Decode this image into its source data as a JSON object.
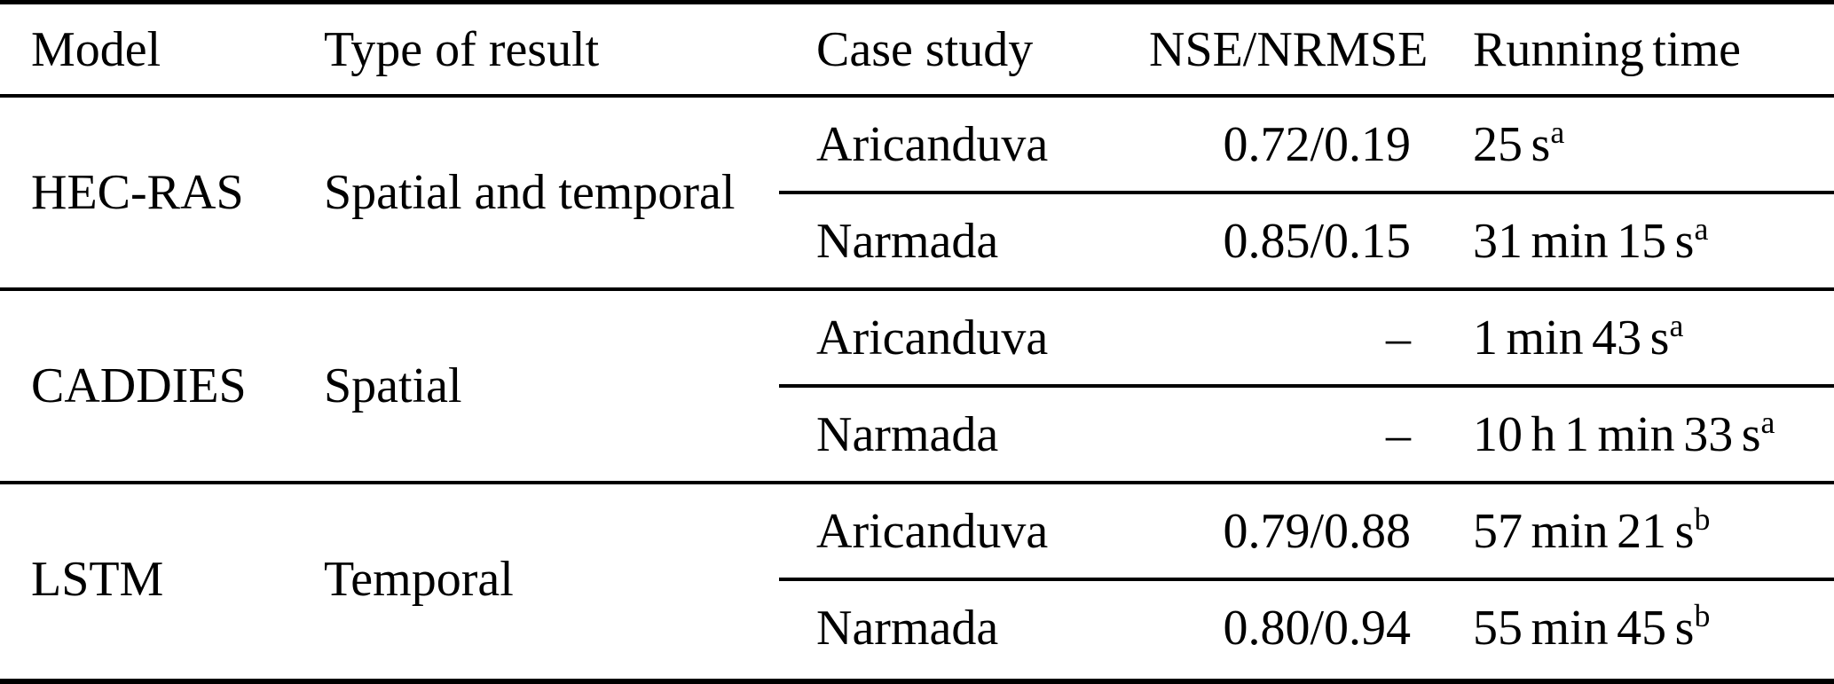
{
  "table": {
    "headers": {
      "model": "Model",
      "type_of_result": "Type of result",
      "case_study": "Case study",
      "nse_nrmse": "NSE/NRMSE",
      "running_time": "Running time"
    },
    "groups": [
      {
        "model": "HEC-RAS",
        "type_of_result": "Spatial and temporal",
        "rows": [
          {
            "case_study": "Aricanduva",
            "nse_nrmse": "0.72/0.19",
            "running_time": "25 s",
            "running_time_sup": "a"
          },
          {
            "case_study": "Narmada",
            "nse_nrmse": "0.85/0.15",
            "running_time": "31 min 15 s",
            "running_time_sup": "a"
          }
        ]
      },
      {
        "model": "CADDIES",
        "type_of_result": "Spatial",
        "rows": [
          {
            "case_study": "Aricanduva",
            "nse_nrmse": "–",
            "running_time": "1 min 43 s",
            "running_time_sup": "a"
          },
          {
            "case_study": "Narmada",
            "nse_nrmse": "–",
            "running_time": "10 h 1 min 33 s",
            "running_time_sup": "a"
          }
        ]
      },
      {
        "model": "LSTM",
        "type_of_result": "Temporal",
        "rows": [
          {
            "case_study": "Aricanduva",
            "nse_nrmse": "0.79/0.88",
            "running_time": "57 min 21 s",
            "running_time_sup": "b"
          },
          {
            "case_study": "Narmada",
            "nse_nrmse": "0.80/0.94",
            "running_time": "55 min 45 s",
            "running_time_sup": "b"
          }
        ]
      }
    ],
    "colors": {
      "text": "#000000",
      "background": "#ffffff",
      "rule": "#000000"
    }
  }
}
